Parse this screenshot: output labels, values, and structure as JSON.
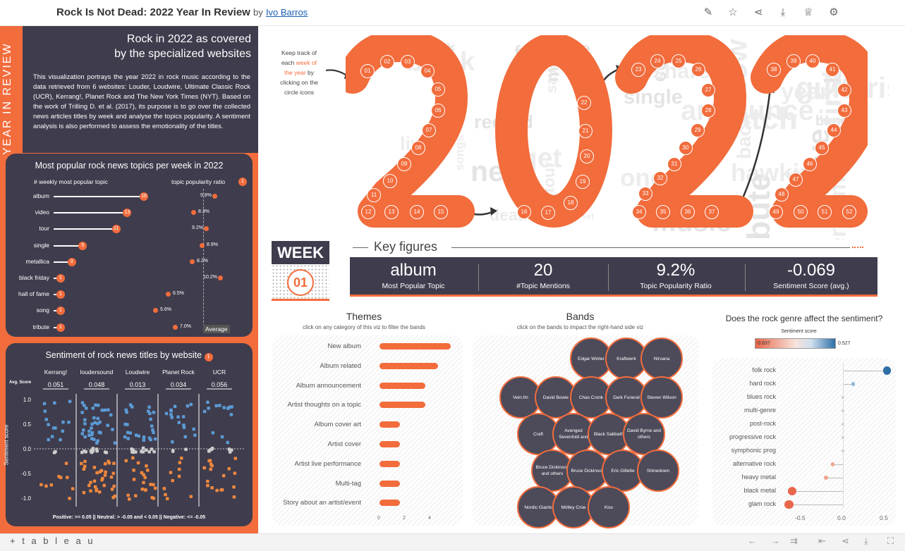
{
  "header": {
    "title": "Rock Is Not Dead: 2022 Year In Review",
    "by": "by",
    "author": "Ivo Barros"
  },
  "toolbar": {
    "icons": [
      "edit-icon",
      "star-icon",
      "share-icon",
      "download-icon",
      "metrics-icon",
      "settings-icon"
    ]
  },
  "sidebar": {
    "vertical_label": "YEAR IN REVIEW",
    "heading": "Rock in 2022 as covered\nby the specialized websites",
    "intro": "This visualization portrays the year 2022 in rock music according to the data retrieved from 6 websites: Louder, Loudwire, Ultimate Classic Rock (UCR), Kerrang!, Planet Rock and The New York Times (NYT). Based on the work of Trilling D. et al. (2017), its purpose is to go over the collected news articles titles by week and analyse the topics popularity. A sentiment analysis is also performed to assess the emotionality of the titles."
  },
  "topics_card": {
    "title": "Most popular rock news topics per week in 2022",
    "col1": "# weekly most popular topic",
    "col2": "topic popularity ratio",
    "info_icon": "1",
    "average_label": "Average",
    "rows": [
      {
        "topic": "album",
        "count": 16,
        "ratio": "9.8%",
        "ratio_val": 9.8
      },
      {
        "topic": "video",
        "count": 13,
        "ratio": "8.3%",
        "ratio_val": 8.3
      },
      {
        "topic": "tour",
        "count": 11,
        "ratio": "9.2%",
        "ratio_val": 9.2
      },
      {
        "topic": "single",
        "count": 5,
        "ratio": "8.9%",
        "ratio_val": 8.9
      },
      {
        "topic": "metallica",
        "count": 3,
        "ratio": "8.2%",
        "ratio_val": 8.2
      },
      {
        "topic": "black friday",
        "count": 1,
        "ratio": "10.2%",
        "ratio_val": 10.2
      },
      {
        "topic": "hall of fame",
        "count": 1,
        "ratio": "6.5%",
        "ratio_val": 6.5
      },
      {
        "topic": "song",
        "count": 1,
        "ratio": "5.6%",
        "ratio_val": 5.6
      },
      {
        "topic": "tribute",
        "count": 1,
        "ratio": "7.0%",
        "ratio_val": 7.0
      }
    ]
  },
  "sentiment_card": {
    "title": "Sentiment of rock news titles by website",
    "info_icon": "1",
    "avg_label": "Avg. Score",
    "y_label": "Sentiment score",
    "y_ticks": [
      "1.0",
      "0.5",
      "0.0",
      "-0.5",
      "-1.0"
    ],
    "sites": [
      {
        "name": "Kerrang!",
        "score": "0.051"
      },
      {
        "name": "loudersound",
        "score": "0.048"
      },
      {
        "name": "Loudwire",
        "score": "0.013"
      },
      {
        "name": "Planet Rock",
        "score": "0.034"
      },
      {
        "name": "UCR",
        "score": "0.056"
      }
    ],
    "legend": "Positive: >= 0.05   ||   Neutral: > -0.05 and < 0.05   ||   Negative: <= -0.05"
  },
  "hero": {
    "keep_track_1": "Keep track of each",
    "keep_track_hl": "week of the year",
    "keep_track_2": "by clicking on the circle icons",
    "year_digits": [
      "2",
      "0",
      "2",
      "2"
    ],
    "word_cloud": [
      "dead",
      "band",
      "watch",
      "video",
      "album",
      "tour",
      "single",
      "release",
      "live",
      "new",
      "black",
      "music",
      "song",
      "cover",
      "set",
      "year",
      "best",
      "one",
      "songs",
      "says",
      "first",
      "show",
      "back",
      "hawkins",
      "tribute",
      "metal",
      "rock",
      "fan",
      "van",
      "live",
      "time",
      "record",
      "share",
      "get",
      "announce",
      "perform",
      "guitarist",
      "gig"
    ]
  },
  "week": {
    "label": "WEEK",
    "value": "01"
  },
  "key_figures": {
    "title": "Key figures",
    "items": [
      {
        "value": "album",
        "label": "Most Popular Topic"
      },
      {
        "value": "20",
        "label": "#Topic Mentions"
      },
      {
        "value": "9.2%",
        "label": "Topic Popularity Ratio"
      },
      {
        "value": "-0.069",
        "label": "Sentiment Score (avg.)"
      }
    ]
  },
  "themes": {
    "title": "Themes",
    "subtitle": "click on any category of this viz to filter the bands",
    "axis": [
      "0",
      "2",
      "4"
    ],
    "items": [
      {
        "label": "New album",
        "value": 5.6
      },
      {
        "label": "Album related",
        "value": 4.6
      },
      {
        "label": "Album announcement",
        "value": 3.6
      },
      {
        "label": "Artist thoughts on a topic",
        "value": 3.6
      },
      {
        "label": "Album cover art",
        "value": 1.6
      },
      {
        "label": "Artist cover",
        "value": 1.6
      },
      {
        "label": "Artist live performance",
        "value": 1.6
      },
      {
        "label": "Multi-tag",
        "value": 1.6
      },
      {
        "label": "Story about an artist/event",
        "value": 1.6
      }
    ]
  },
  "bands": {
    "title": "Bands",
    "subtitle": "click on the bands  to impact the right-hand side viz",
    "items": [
      "Edgar Winter",
      "Kraftwerk",
      "Nirvana",
      "Vein.fm",
      "David Bowie",
      "Chas Cronk",
      "Dark Funeral",
      "Steven Wilson",
      "Craft",
      "Avenged Sevenfold and",
      "Black Sabbath",
      "David Byrne and others",
      "Bruce Dickinson and others",
      "Bruce Dickinson",
      "Eric Gillette",
      "Shinedown",
      "Nordic Giants",
      "Mötley Crüe",
      "Kiss"
    ]
  },
  "genre": {
    "title": "Does the rock genre affect the sentiment?",
    "legend_title": "Sentiment score",
    "legend_min": "-0.637",
    "legend_max": "0.527",
    "axis": [
      "-0.5",
      "0.0",
      "0.5"
    ],
    "rows": [
      {
        "genre": "folk rock",
        "value": 0.52
      },
      {
        "genre": "hard rock",
        "value": 0.12
      },
      {
        "genre": "blues rock",
        "value": 0.0
      },
      {
        "genre": "multi-genre",
        "value": 0.0
      },
      {
        "genre": "post-rock",
        "value": 0.0
      },
      {
        "genre": "progressive rock",
        "value": 0.0
      },
      {
        "genre": "symphonic prog",
        "value": 0.0
      },
      {
        "genre": "alternative rock",
        "value": -0.12
      },
      {
        "genre": "heavy metal",
        "value": -0.2
      },
      {
        "genre": "black metal",
        "value": -0.6
      },
      {
        "genre": "glam rock",
        "value": -0.64
      }
    ]
  },
  "footer": {
    "brand": "+ t a b l e a u"
  },
  "colors": {
    "accent": "#f26c3c",
    "dark": "#3f3c4d",
    "positive": "#2f6fa8"
  }
}
